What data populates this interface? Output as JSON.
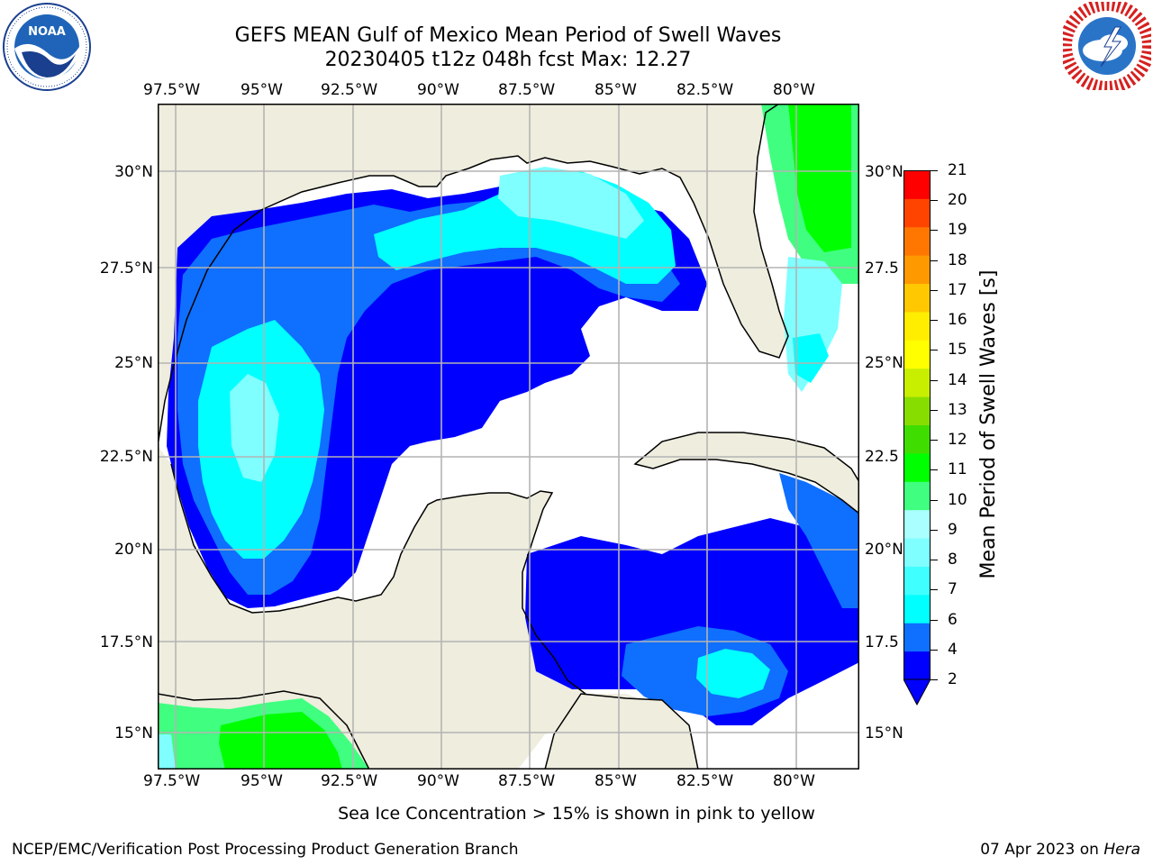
{
  "title": {
    "line1": "GEFS MEAN Gulf of Mexico Mean Period of Swell Waves",
    "line2": "20230405 t12z 048h fcst   Max: 12.27"
  },
  "axes": {
    "lon_ticks": [
      "97.5°W",
      "95°W",
      "92.5°W",
      "90°W",
      "87.5°W",
      "85°W",
      "82.5°W",
      "80°W"
    ],
    "lat_ticks_left": [
      "30°N",
      "27.5°N",
      "25°N",
      "22.5°N",
      "20°N",
      "17.5°N",
      "15°N"
    ],
    "lat_ticks_right": [
      "30°N",
      "27.5",
      "25°N",
      "22.5",
      "20°N",
      "17.5",
      "15°N"
    ],
    "lon_range": [
      -98.0,
      -78.3
    ],
    "lat_range": [
      14.0,
      31.6
    ]
  },
  "colorbar": {
    "label": "Mean Period of Swell Waves [s]",
    "ticks": [
      "21",
      "20",
      "19",
      "18",
      "17",
      "16",
      "15",
      "14",
      "13",
      "12",
      "11",
      "10",
      "9",
      "8",
      "7",
      "6",
      "4",
      "2"
    ],
    "levels": [
      2,
      4,
      6,
      7,
      8,
      9,
      10,
      11,
      12,
      13,
      14,
      15,
      16,
      17,
      18,
      19,
      20,
      21
    ],
    "colors": [
      "#0000ff",
      "#0f6fff",
      "#00ffff",
      "#40ffff",
      "#7fffff",
      "#aaffff",
      "#40ff80",
      "#00ff00",
      "#40dd00",
      "#88dd00",
      "#c8ee00",
      "#ffff00",
      "#ffee00",
      "#ffc800",
      "#ff9900",
      "#ff7700",
      "#ff4400",
      "#ff0000"
    ],
    "under_color": "#0000ff"
  },
  "colors": {
    "land": "#eeedde",
    "ocean_none": "#ffffff",
    "grid": "#b4b4b4"
  },
  "footer": {
    "note": "Sea Ice Concentration > 15% is shown in pink to yellow",
    "left_credit": "NCEP/EMC/Verification Post Processing Product Generation Branch",
    "right_credit_date": "07 Apr 2023 on ",
    "right_credit_host": "Hera"
  },
  "logos": {
    "left": "noaa-logo",
    "right": "national-weather-service-logo"
  }
}
